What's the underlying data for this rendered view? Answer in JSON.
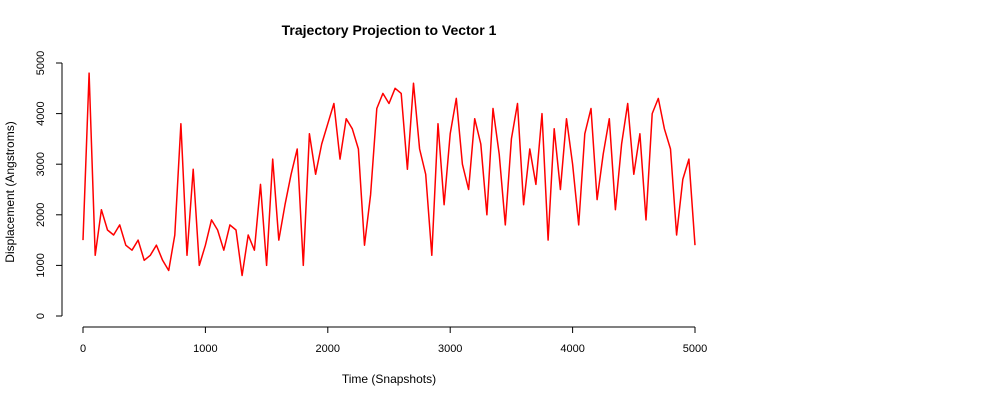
{
  "chart_data": {
    "type": "line",
    "title": "Trajectory Projection to Vector 1",
    "xlabel": "Time (Snapshots)",
    "ylabel": "Displacement (Angstroms)",
    "xlim": [
      0,
      5000
    ],
    "ylim": [
      0,
      5000
    ],
    "x_ticks": [
      0,
      1000,
      2000,
      3000,
      4000,
      5000
    ],
    "y_ticks": [
      0,
      1000,
      2000,
      3000,
      4000,
      5000
    ],
    "grid": false,
    "legend": "none",
    "series": [
      {
        "color": "#ff0000",
        "x": [
          0,
          50,
          100,
          150,
          200,
          250,
          300,
          350,
          400,
          450,
          500,
          550,
          600,
          650,
          700,
          750,
          800,
          850,
          900,
          950,
          1000,
          1050,
          1100,
          1150,
          1200,
          1250,
          1300,
          1350,
          1400,
          1450,
          1500,
          1550,
          1600,
          1650,
          1700,
          1750,
          1800,
          1850,
          1900,
          1950,
          2000,
          2050,
          2100,
          2150,
          2200,
          2250,
          2300,
          2350,
          2400,
          2450,
          2500,
          2550,
          2600,
          2650,
          2700,
          2750,
          2800,
          2850,
          2900,
          2950,
          3000,
          3050,
          3100,
          3150,
          3200,
          3250,
          3300,
          3350,
          3400,
          3450,
          3500,
          3550,
          3600,
          3650,
          3700,
          3750,
          3800,
          3850,
          3900,
          3950,
          4000,
          4050,
          4100,
          4150,
          4200,
          4250,
          4300,
          4350,
          4400,
          4450,
          4500,
          4550,
          4600,
          4650,
          4700,
          4750,
          4800,
          4850,
          4900,
          4950,
          5000
        ],
        "y": [
          1500,
          4800,
          1200,
          2100,
          1700,
          1600,
          1800,
          1400,
          1300,
          1500,
          1100,
          1200,
          1400,
          1100,
          900,
          1600,
          3800,
          1200,
          2900,
          1000,
          1400,
          1900,
          1700,
          1300,
          1800,
          1700,
          800,
          1600,
          1300,
          2600,
          1000,
          3100,
          1500,
          2200,
          2800,
          3300,
          1000,
          3600,
          2800,
          3400,
          3800,
          4200,
          3100,
          3900,
          3700,
          3300,
          1400,
          2400,
          4100,
          4400,
          4200,
          4500,
          4400,
          2900,
          4600,
          3300,
          2800,
          1200,
          3800,
          2200,
          3600,
          4300,
          3000,
          2500,
          3900,
          3400,
          2000,
          4100,
          3200,
          1800,
          3500,
          4200,
          2200,
          3300,
          2600,
          4000,
          1500,
          3700,
          2500,
          3900,
          3000,
          1800,
          3600,
          4100,
          2300,
          3200,
          3900,
          2100,
          3400,
          4200,
          2800,
          3600,
          1900,
          4000,
          4300,
          3700,
          3300,
          1600,
          2700,
          3100,
          1400
        ]
      }
    ]
  }
}
